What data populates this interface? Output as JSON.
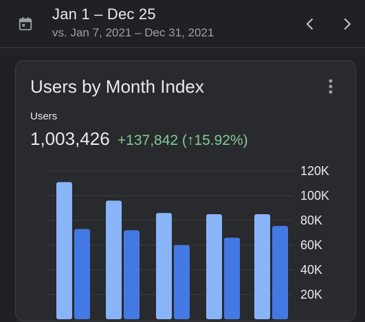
{
  "header": {
    "date_range": "Jan 1 – Dec 25",
    "compare_range": "vs. Jan 7, 2021 – Dec 31, 2021",
    "icons": {
      "calendar": "calendar-icon",
      "prev": "chevron-left-icon",
      "next": "chevron-right-icon"
    }
  },
  "card": {
    "title": "Users by Month Index",
    "metric_label": "Users",
    "metric_value": "1,003,426",
    "metric_change": "+137,842 (↑15.92%)",
    "menu_icon": "more-vert-icon"
  },
  "colors": {
    "previous_period": "#8ab4f8",
    "current_period": "#4479e4",
    "positive_change": "#81c995",
    "gridline": "#3c4043"
  },
  "chart_data": {
    "type": "bar",
    "title": "Users by Month Index",
    "xlabel": "",
    "ylabel": "Users",
    "ylim": [
      0,
      120000
    ],
    "y_ticks": [
      "20K",
      "40K",
      "60K",
      "80K",
      "100K",
      "120K"
    ],
    "y_tick_values": [
      20000,
      40000,
      60000,
      80000,
      100000,
      120000
    ],
    "grid": true,
    "series": [
      {
        "values": [
          111000,
          96000,
          86000,
          85000,
          85000
        ],
        "color": "#8ab4f8"
      },
      {
        "values": [
          73000,
          72000,
          60000,
          66000,
          75500
        ],
        "color": "#4479e4"
      }
    ]
  }
}
